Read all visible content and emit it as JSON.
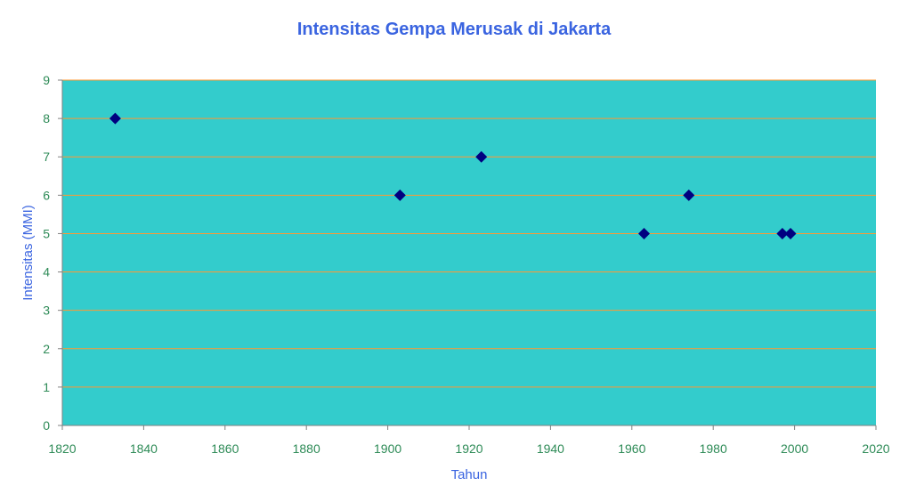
{
  "chart_data": {
    "type": "scatter",
    "title": "Intensitas Gempa Merusak di Jakarta",
    "xlabel": "Tahun",
    "ylabel": "Intensitas (MMI)",
    "xlim": [
      1820,
      2020
    ],
    "ylim": [
      0,
      9
    ],
    "xticks": [
      1820,
      1840,
      1860,
      1880,
      1900,
      1920,
      1940,
      1960,
      1980,
      2000,
      2020
    ],
    "yticks": [
      0,
      1,
      2,
      3,
      4,
      5,
      6,
      7,
      8,
      9
    ],
    "grid": true,
    "legend": "none",
    "marker": "diamond",
    "series": [
      {
        "points": [
          {
            "x": 1833,
            "y": 8
          },
          {
            "x": 1903,
            "y": 6
          },
          {
            "x": 1923,
            "y": 7
          },
          {
            "x": 1963,
            "y": 5
          },
          {
            "x": 1974,
            "y": 6
          },
          {
            "x": 1997,
            "y": 5
          },
          {
            "x": 1999,
            "y": 5
          }
        ]
      }
    ],
    "colors": {
      "plot_background": "#33cccc",
      "gridline": "#ff9933",
      "axis_line": "#808080",
      "marker": "#000080",
      "title_text": "#3a64e0",
      "tick_text": "#2e8b57",
      "axis_title_text": "#3a64e0"
    }
  }
}
